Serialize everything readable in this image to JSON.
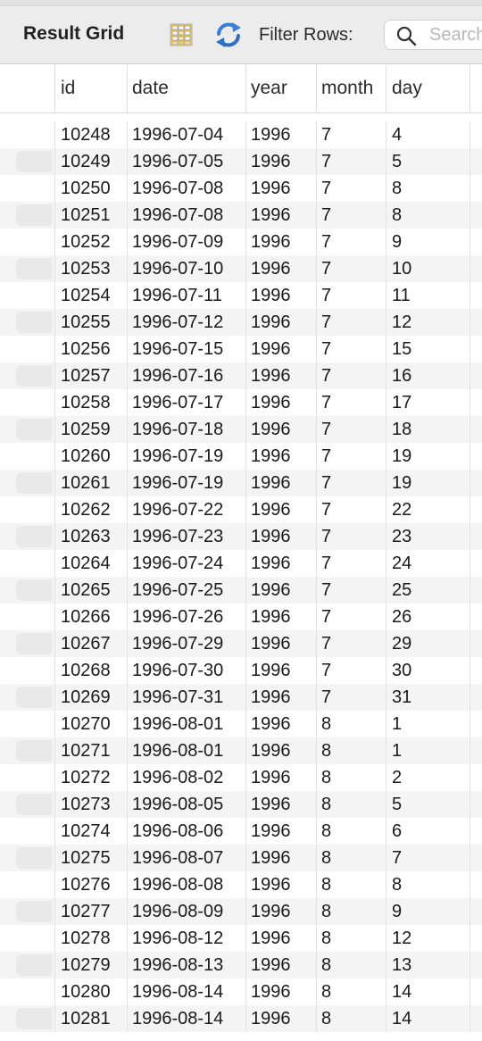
{
  "toolbar": {
    "title": "Result Grid",
    "grid_icon": "form-grid-icon",
    "refresh_icon": "refresh-arrows-icon",
    "filter_label": "Filter Rows:",
    "search_icon": "search-icon",
    "search_placeholder": "Search",
    "search_value": ""
  },
  "columns": [
    "id",
    "date",
    "year",
    "month",
    "day"
  ],
  "rows": [
    [
      "10248",
      "1996-07-04",
      "1996",
      "7",
      "4"
    ],
    [
      "10249",
      "1996-07-05",
      "1996",
      "7",
      "5"
    ],
    [
      "10250",
      "1996-07-08",
      "1996",
      "7",
      "8"
    ],
    [
      "10251",
      "1996-07-08",
      "1996",
      "7",
      "8"
    ],
    [
      "10252",
      "1996-07-09",
      "1996",
      "7",
      "9"
    ],
    [
      "10253",
      "1996-07-10",
      "1996",
      "7",
      "10"
    ],
    [
      "10254",
      "1996-07-11",
      "1996",
      "7",
      "11"
    ],
    [
      "10255",
      "1996-07-12",
      "1996",
      "7",
      "12"
    ],
    [
      "10256",
      "1996-07-15",
      "1996",
      "7",
      "15"
    ],
    [
      "10257",
      "1996-07-16",
      "1996",
      "7",
      "16"
    ],
    [
      "10258",
      "1996-07-17",
      "1996",
      "7",
      "17"
    ],
    [
      "10259",
      "1996-07-18",
      "1996",
      "7",
      "18"
    ],
    [
      "10260",
      "1996-07-19",
      "1996",
      "7",
      "19"
    ],
    [
      "10261",
      "1996-07-19",
      "1996",
      "7",
      "19"
    ],
    [
      "10262",
      "1996-07-22",
      "1996",
      "7",
      "22"
    ],
    [
      "10263",
      "1996-07-23",
      "1996",
      "7",
      "23"
    ],
    [
      "10264",
      "1996-07-24",
      "1996",
      "7",
      "24"
    ],
    [
      "10265",
      "1996-07-25",
      "1996",
      "7",
      "25"
    ],
    [
      "10266",
      "1996-07-26",
      "1996",
      "7",
      "26"
    ],
    [
      "10267",
      "1996-07-29",
      "1996",
      "7",
      "29"
    ],
    [
      "10268",
      "1996-07-30",
      "1996",
      "7",
      "30"
    ],
    [
      "10269",
      "1996-07-31",
      "1996",
      "7",
      "31"
    ],
    [
      "10270",
      "1996-08-01",
      "1996",
      "8",
      "1"
    ],
    [
      "10271",
      "1996-08-01",
      "1996",
      "8",
      "1"
    ],
    [
      "10272",
      "1996-08-02",
      "1996",
      "8",
      "2"
    ],
    [
      "10273",
      "1996-08-05",
      "1996",
      "8",
      "5"
    ],
    [
      "10274",
      "1996-08-06",
      "1996",
      "8",
      "6"
    ],
    [
      "10275",
      "1996-08-07",
      "1996",
      "8",
      "7"
    ],
    [
      "10276",
      "1996-08-08",
      "1996",
      "8",
      "8"
    ],
    [
      "10277",
      "1996-08-09",
      "1996",
      "8",
      "9"
    ],
    [
      "10278",
      "1996-08-12",
      "1996",
      "8",
      "12"
    ],
    [
      "10279",
      "1996-08-13",
      "1996",
      "8",
      "13"
    ],
    [
      "10280",
      "1996-08-14",
      "1996",
      "8",
      "14"
    ],
    [
      "10281",
      "1996-08-14",
      "1996",
      "8",
      "14"
    ]
  ]
}
